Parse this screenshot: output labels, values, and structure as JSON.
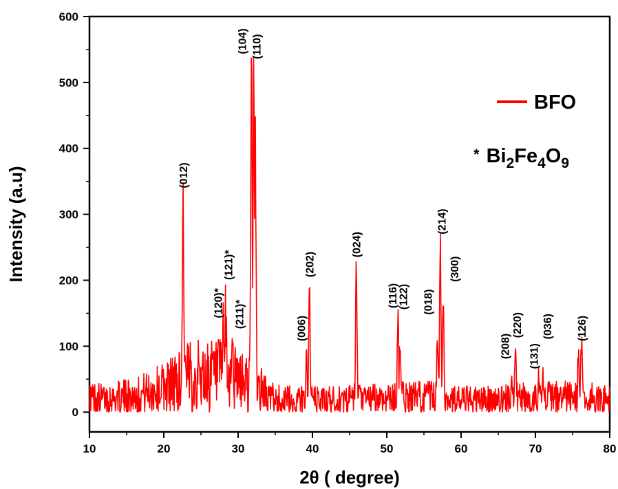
{
  "chart_data": {
    "type": "line",
    "xlabel": "2θ ( degree)",
    "ylabel": "Intensity (a.u)",
    "xlim": [
      10,
      80
    ],
    "ylim": [
      -30,
      600
    ],
    "xticks": [
      10,
      20,
      30,
      40,
      50,
      60,
      70,
      80
    ],
    "yticks": [
      0,
      100,
      200,
      300,
      400,
      500,
      600
    ],
    "grid": false,
    "legend": {
      "placement": "top-right",
      "entries": [
        "BFO"
      ]
    },
    "legend_note": {
      "star": "*",
      "formula": [
        {
          "text": "Bi",
          "sub": false
        },
        {
          "text": "2",
          "sub": true
        },
        {
          "text": "Fe",
          "sub": false
        },
        {
          "text": "4",
          "sub": true
        },
        {
          "text": "O",
          "sub": false
        },
        {
          "text": "9",
          "sub": true
        }
      ]
    },
    "series": [
      {
        "name": "BFO",
        "color": "#ff0000",
        "noise_baseline": [
          [
            10,
            22
          ],
          [
            12,
            20
          ],
          [
            14,
            22
          ],
          [
            16,
            25
          ],
          [
            18,
            30
          ],
          [
            20,
            38
          ],
          [
            22,
            48
          ],
          [
            24,
            55
          ],
          [
            26,
            55
          ],
          [
            28,
            55
          ],
          [
            30,
            48
          ],
          [
            33,
            40
          ],
          [
            34,
            22
          ],
          [
            36,
            18
          ],
          [
            40,
            18
          ],
          [
            44,
            18
          ],
          [
            48,
            20
          ],
          [
            52,
            22
          ],
          [
            56,
            22
          ],
          [
            60,
            18
          ],
          [
            64,
            18
          ],
          [
            68,
            20
          ],
          [
            72,
            22
          ],
          [
            76,
            22
          ],
          [
            80,
            18
          ]
        ],
        "peaks": [
          {
            "x": 22.6,
            "y": 325,
            "label": "(012)"
          },
          {
            "x": 28.0,
            "y": 130,
            "label": "(120)*"
          },
          {
            "x": 28.3,
            "y": 140,
            "label": "(121)*"
          },
          {
            "x": 29.2,
            "y": 120,
            "label": "(211)*"
          },
          {
            "x": 31.8,
            "y": 520,
            "label": "(104)"
          },
          {
            "x": 32.1,
            "y": 527,
            "label": "(110)"
          },
          {
            "x": 32.3,
            "y": 465,
            "label": ""
          },
          {
            "x": 39.2,
            "y": 95,
            "label": "(006)"
          },
          {
            "x": 39.6,
            "y": 190,
            "label": "(202)"
          },
          {
            "x": 45.9,
            "y": 220,
            "label": "(024)"
          },
          {
            "x": 51.5,
            "y": 145,
            "label": "(116)"
          },
          {
            "x": 51.8,
            "y": 120,
            "label": "(122)"
          },
          {
            "x": 56.8,
            "y": 110,
            "label": "(018)"
          },
          {
            "x": 57.2,
            "y": 255,
            "label": "(214)"
          },
          {
            "x": 57.6,
            "y": 185,
            "label": "(300)"
          },
          {
            "x": 66.8,
            "y": 70,
            "label": "(208)"
          },
          {
            "x": 67.3,
            "y": 100,
            "label": "(220)"
          },
          {
            "x": 70.5,
            "y": 55,
            "label": "(131)"
          },
          {
            "x": 71.0,
            "y": 75,
            "label": "(036)"
          },
          {
            "x": 75.8,
            "y": 85,
            "label": ""
          },
          {
            "x": 76.2,
            "y": 95,
            "label": "(126)"
          }
        ]
      }
    ]
  }
}
